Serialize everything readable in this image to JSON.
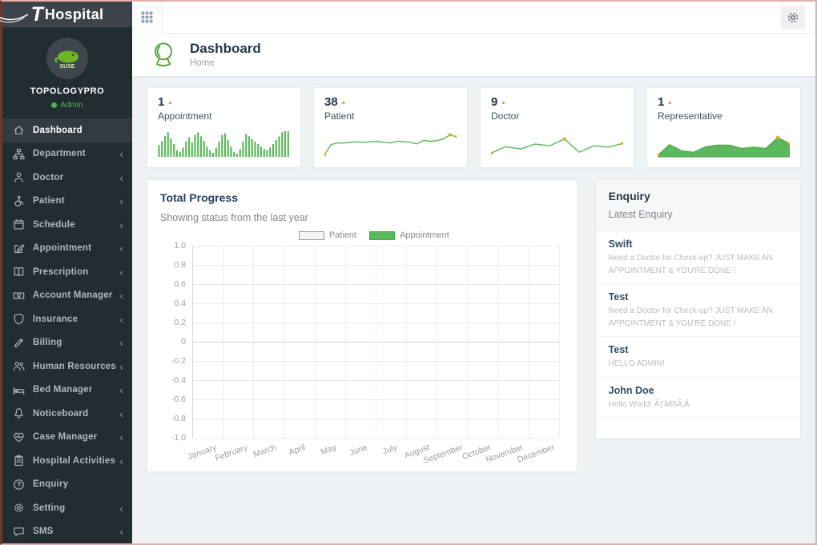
{
  "logo": {
    "initial": "T",
    "brand": "Hospital"
  },
  "topbar": {
    "icons": {
      "apps_grid": "grid-icon",
      "settings": "gear-icon"
    }
  },
  "sidebar": {
    "profile": {
      "name": "TOPOLOGYPRO",
      "role": "Admin"
    },
    "items": [
      {
        "label": "Dashboard",
        "icon": "home",
        "active": true,
        "has_submenu": false
      },
      {
        "label": "Department",
        "icon": "sitemap",
        "active": false,
        "has_submenu": true
      },
      {
        "label": "Doctor",
        "icon": "user-md",
        "active": false,
        "has_submenu": true
      },
      {
        "label": "Patient",
        "icon": "wheelchair",
        "active": false,
        "has_submenu": true
      },
      {
        "label": "Schedule",
        "icon": "calendar",
        "active": false,
        "has_submenu": true
      },
      {
        "label": "Appointment",
        "icon": "edit",
        "active": false,
        "has_submenu": true
      },
      {
        "label": "Prescription",
        "icon": "book",
        "active": false,
        "has_submenu": true
      },
      {
        "label": "Account Manager",
        "icon": "money",
        "active": false,
        "has_submenu": true
      },
      {
        "label": "Insurance",
        "icon": "shield",
        "active": false,
        "has_submenu": true
      },
      {
        "label": "Billing",
        "icon": "pencil",
        "active": false,
        "has_submenu": true
      },
      {
        "label": "Human Resources",
        "icon": "users",
        "active": false,
        "has_submenu": true
      },
      {
        "label": "Bed Manager",
        "icon": "bed",
        "active": false,
        "has_submenu": true
      },
      {
        "label": "Noticeboard",
        "icon": "bell",
        "active": false,
        "has_submenu": true
      },
      {
        "label": "Case Manager",
        "icon": "heartbeat",
        "active": false,
        "has_submenu": true
      },
      {
        "label": "Hospital Activities",
        "icon": "clipboard",
        "active": false,
        "has_submenu": true
      },
      {
        "label": "Enquiry",
        "icon": "question",
        "active": false,
        "has_submenu": false
      },
      {
        "label": "Setting",
        "icon": "gear",
        "active": false,
        "has_submenu": true
      },
      {
        "label": "SMS",
        "icon": "comment",
        "active": false,
        "has_submenu": true
      }
    ]
  },
  "page": {
    "title": "Dashboard",
    "breadcrumb": "Home",
    "header_icon": "globe-icon"
  },
  "stats": [
    {
      "value": "1",
      "label": "Appointment",
      "trend": "up"
    },
    {
      "value": "38",
      "label": "Patient",
      "trend": "up"
    },
    {
      "value": "9",
      "label": "Doctor",
      "trend": "up"
    },
    {
      "value": "1",
      "label": "Representative",
      "trend": "up"
    }
  ],
  "icons": {
    "trend_up": "▲",
    "chevron": "‹"
  },
  "progress": {
    "title": "Total Progress",
    "subtitle": "Showing status from the last year"
  },
  "enquiry": {
    "title": "Enquiry",
    "subtitle": "Latest Enquiry",
    "items": [
      {
        "name": "Swift",
        "message": "Need a Doctor for Check-up? JUST MAKE AN APPOINTMENT & YOU'RE DONE !"
      },
      {
        "name": "Test",
        "message": "Need a Doctor for Check-up? JUST MAKE AN APPOINTMENT & YOU'RE DONE !"
      },
      {
        "name": "Test",
        "message": "HELLO ADMIN!"
      },
      {
        "name": "John Doe",
        "message": "Hello World! Ãƒâ€šÃ‚Â"
      }
    ]
  },
  "colors": {
    "accent_green": "#5cb85c",
    "marker_orange": "#f5a623",
    "navy": "#24405e",
    "sidebar_bg": "#222d32"
  },
  "chart_data": [
    {
      "id": "appointment-sparkline",
      "type": "bar",
      "title": "Appointment",
      "values": [
        46,
        62,
        82,
        96,
        72,
        50,
        26,
        20,
        36,
        60,
        76,
        56,
        86,
        96,
        80,
        62,
        40,
        26,
        16,
        36,
        60,
        86,
        92,
        66,
        40,
        20,
        12,
        30,
        60,
        90,
        80,
        70,
        60,
        50,
        40,
        30,
        26,
        36,
        50,
        66,
        80,
        96,
        100,
        100
      ],
      "color": "#5cb85c"
    },
    {
      "id": "patient-sparkline",
      "type": "line",
      "title": "Patient",
      "values": [
        8,
        48,
        54,
        54,
        57,
        59,
        56,
        59,
        61,
        57,
        54,
        61,
        59,
        57,
        51,
        64,
        61,
        63,
        70,
        86,
        78
      ],
      "markers": [
        0,
        19,
        20
      ],
      "color": "#5cb85c",
      "marker_color": "#f5a623"
    },
    {
      "id": "doctor-sparkline",
      "type": "line",
      "title": "Doctor",
      "values": [
        14,
        40,
        31,
        50,
        43,
        70,
        18,
        43,
        38,
        53
      ],
      "markers": [
        0,
        5,
        9
      ],
      "color": "#5cb85c",
      "marker_color": "#f5a623"
    },
    {
      "id": "representative-sparkline",
      "type": "area",
      "title": "Representative",
      "values": [
        6,
        48,
        24,
        18,
        40,
        46,
        46,
        33,
        38,
        33,
        76,
        52
      ],
      "markers": [
        0,
        10,
        11
      ],
      "color": "#5cb85c",
      "stroke": "#4aa343",
      "marker_color": "#f5a623"
    },
    {
      "id": "total-progress",
      "type": "line",
      "title": "Total Progress",
      "categories": [
        "January",
        "February",
        "March",
        "April",
        "May",
        "June",
        "July",
        "August",
        "September",
        "October",
        "November",
        "December"
      ],
      "series": [
        {
          "name": "Patient",
          "color": "#f5f5f5",
          "border": "#999999",
          "values": []
        },
        {
          "name": "Appointment",
          "color": "#5cb85c",
          "border": "#4aa343",
          "values": []
        }
      ],
      "ylim": [
        -1,
        1
      ],
      "yticks": [
        "1.0",
        "0.8",
        "0.6",
        "0.4",
        "0.2",
        "0",
        "-0.2",
        "-0.4",
        "-0.6",
        "-0.8",
        "-1.0"
      ],
      "grid": true,
      "legend_position": "top-center",
      "plotted_points": "none"
    }
  ]
}
